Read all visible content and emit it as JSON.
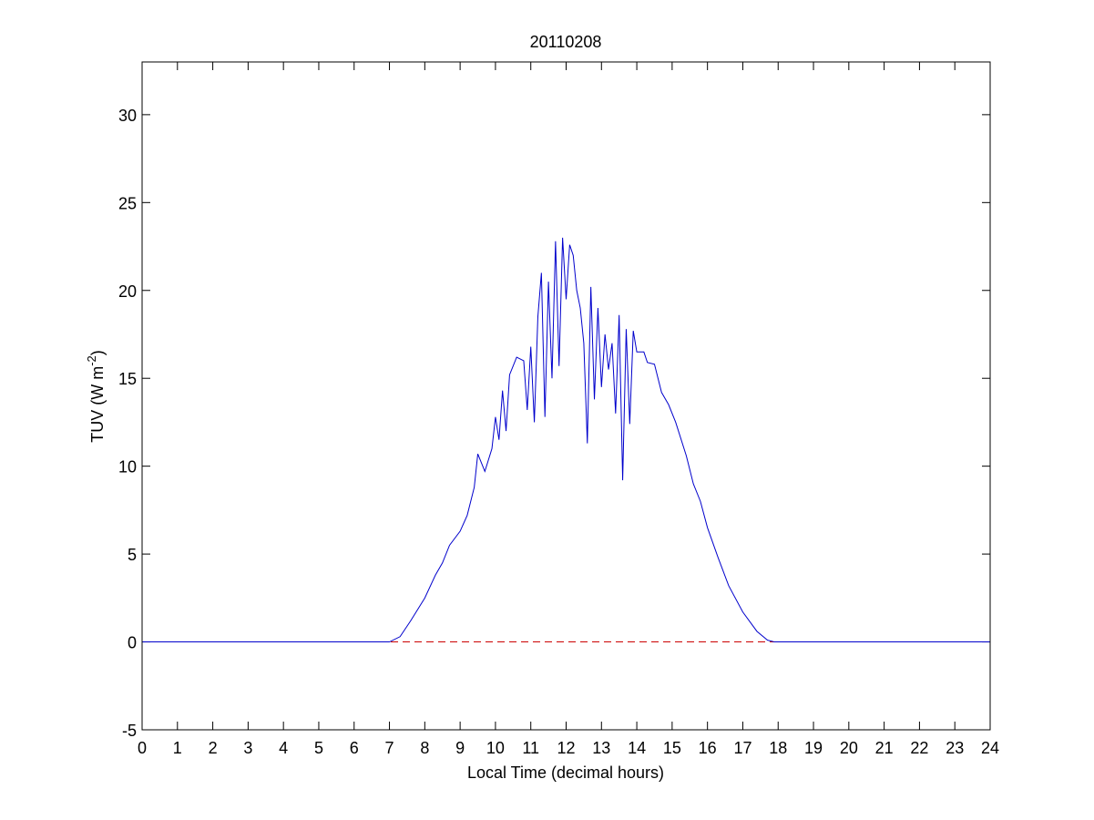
{
  "chart_data": {
    "type": "line",
    "title": "20110208",
    "xlabel": "Local Time (decimal hours)",
    "ylabel": [
      "TUV (W m",
      "-2",
      ")"
    ],
    "xlim": [
      0,
      24
    ],
    "xticks": [
      0,
      1,
      2,
      3,
      4,
      5,
      6,
      7,
      8,
      9,
      10,
      11,
      12,
      13,
      14,
      15,
      16,
      17,
      18,
      19,
      20,
      21,
      22,
      23,
      24
    ],
    "ylim": [
      -5,
      33
    ],
    "yticks": [
      -5,
      0,
      5,
      10,
      15,
      20,
      25,
      30
    ],
    "series": [
      {
        "color": "#0000cc",
        "dash": false,
        "x": [
          0,
          7.0,
          7.3,
          7.6,
          8.0,
          8.3,
          8.5,
          8.7,
          9.0,
          9.2,
          9.4,
          9.5,
          9.7,
          9.9,
          10.0,
          10.1,
          10.2,
          10.3,
          10.4,
          10.6,
          10.8,
          10.9,
          11.0,
          11.1,
          11.2,
          11.3,
          11.4,
          11.5,
          11.6,
          11.7,
          11.8,
          11.9,
          12.0,
          12.1,
          12.2,
          12.3,
          12.4,
          12.5,
          12.6,
          12.7,
          12.8,
          12.9,
          13.0,
          13.1,
          13.2,
          13.3,
          13.4,
          13.5,
          13.6,
          13.7,
          13.8,
          13.9,
          14.0,
          14.2,
          14.3,
          14.5,
          14.7,
          14.9,
          15.1,
          15.4,
          15.6,
          15.8,
          16.0,
          16.3,
          16.6,
          17.0,
          17.4,
          17.7,
          17.9,
          24
        ],
        "values": [
          0,
          0,
          0.3,
          1.2,
          2.5,
          3.8,
          4.5,
          5.5,
          6.3,
          7.2,
          8.8,
          10.7,
          9.7,
          11.0,
          12.8,
          11.5,
          14.3,
          12.0,
          15.2,
          16.2,
          16.0,
          13.2,
          16.8,
          12.5,
          18.5,
          21.0,
          12.8,
          20.5,
          15.0,
          22.8,
          15.7,
          23.0,
          19.5,
          22.6,
          22.0,
          20.0,
          19.0,
          17.0,
          11.3,
          20.2,
          13.8,
          19.0,
          14.5,
          17.5,
          15.5,
          17.0,
          13.0,
          18.6,
          9.2,
          17.8,
          12.4,
          17.7,
          16.5,
          16.5,
          15.9,
          15.8,
          14.2,
          13.5,
          12.5,
          10.6,
          9.0,
          8.0,
          6.5,
          4.8,
          3.2,
          1.7,
          0.6,
          0.1,
          0,
          0
        ]
      },
      {
        "color": "#cc0000",
        "dash": true,
        "x": [
          0,
          24
        ],
        "values": [
          0,
          0
        ]
      }
    ]
  }
}
